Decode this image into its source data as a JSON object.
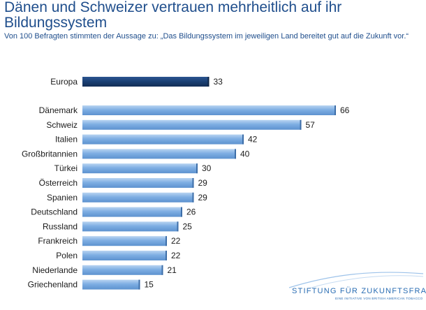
{
  "title": "Dänen und Schweizer vertrauen mehrheitlich auf ihr Bildungssystem",
  "subtitle": "Von 100 Befragten stimmten der Aussage zu: „Das Bildungssystem im jeweiligen Land bereitet gut auf die Zukunft vor.“",
  "logo": {
    "text": "STIFTUNG FÜR ZUKUNFTSFRAGEN",
    "tagline": "EINE INITIATIVE VON BRITISH AMERICAN TOBACCO",
    "color": "#2a6db3"
  },
  "colors": {
    "highlight_bar": "#1b3f73",
    "bar": "#7eaee3",
    "title": "#1f4e8c"
  },
  "chart_data": {
    "type": "bar",
    "orientation": "horizontal",
    "highlight_category": "Europa",
    "categories": [
      "Europa",
      "Dänemark",
      "Schweiz",
      "Italien",
      "Großbritannien",
      "Türkei",
      "Österreich",
      "Spanien",
      "Deutschland",
      "Russland",
      "Frankreich",
      "Polen",
      "Niederlande",
      "Griechenland"
    ],
    "values": [
      33,
      66,
      57,
      42,
      40,
      30,
      29,
      29,
      26,
      25,
      22,
      22,
      21,
      15
    ],
    "data_labels": true,
    "xlim": [
      0,
      66
    ],
    "grid": false,
    "legend": "none"
  }
}
